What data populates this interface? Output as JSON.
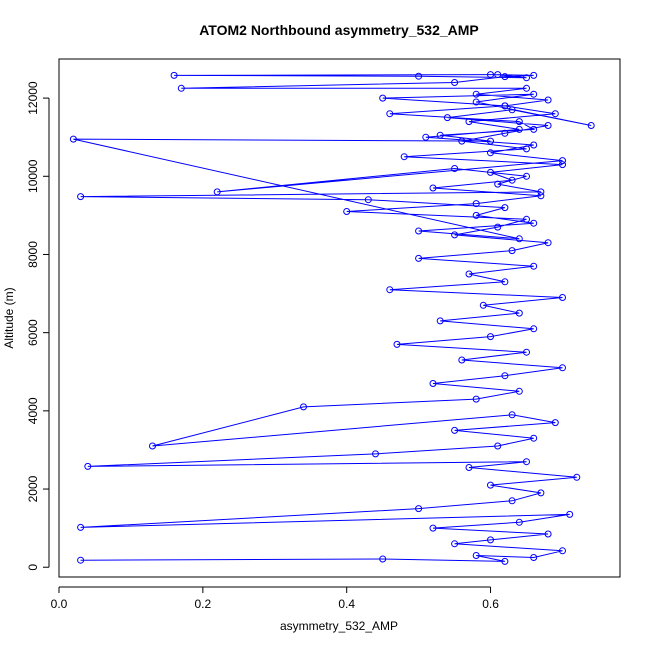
{
  "chart_data": {
    "type": "scatter",
    "title": "ATOM2 Northbound asymmetry_532_AMP",
    "xlabel": "asymmetry_532_AMP",
    "ylabel": "Altitude (m)",
    "xlim": [
      0.0,
      0.78
    ],
    "ylim": [
      -250,
      13000
    ],
    "x_ticks": [
      0.0,
      0.2,
      0.4,
      0.6
    ],
    "x_tick_labels": [
      "0.0",
      "0.2",
      "0.4",
      "0.6"
    ],
    "y_ticks": [
      0,
      2000,
      4000,
      6000,
      8000,
      10000,
      12000
    ],
    "y_tick_labels": [
      "0",
      "2000",
      "4000",
      "6000",
      "8000",
      "10000",
      "12000"
    ],
    "series_color": "#0000ff",
    "marker": "open-circle",
    "line": "connected",
    "grid": false,
    "legend": "none",
    "series": [
      {
        "x": [
          0.03,
          0.45,
          0.62,
          0.58,
          0.66,
          0.7,
          0.55,
          0.6,
          0.68,
          0.52,
          0.64,
          0.71,
          0.03,
          0.5,
          0.63,
          0.67,
          0.6,
          0.72,
          0.57,
          0.65,
          0.04,
          0.44,
          0.61,
          0.66,
          0.55,
          0.69,
          0.63,
          0.13,
          0.34,
          0.58,
          0.64,
          0.52,
          0.62,
          0.7,
          0.56,
          0.65,
          0.47,
          0.6,
          0.66,
          0.53,
          0.64,
          0.59,
          0.7,
          0.46,
          0.62,
          0.57,
          0.66,
          0.5,
          0.63,
          0.68,
          0.55,
          0.61,
          0.65,
          0.4,
          0.58,
          0.67,
          0.52,
          0.63,
          0.6,
          0.7,
          0.48,
          0.65,
          0.56,
          0.62,
          0.68,
          0.54,
          0.63,
          0.74,
          0.58,
          0.66,
          0.45,
          0.62,
          0.69,
          0.57,
          0.64,
          0.51,
          0.66,
          0.6,
          0.7,
          0.22,
          0.55,
          0.65,
          0.61,
          0.67,
          0.03,
          0.43,
          0.62,
          0.58,
          0.66,
          0.5,
          0.64,
          0.02,
          0.6,
          0.53,
          0.66,
          0.64,
          0.46,
          0.62,
          0.68,
          0.58,
          0.65,
          0.17,
          0.55,
          0.62,
          0.66,
          0.6,
          0.16,
          0.5,
          0.65,
          0.61
        ],
        "y": [
          180,
          210,
          150,
          300,
          250,
          420,
          600,
          700,
          850,
          1000,
          1150,
          1350,
          1020,
          1500,
          1700,
          1900,
          2100,
          2300,
          2550,
          2700,
          2580,
          2900,
          3100,
          3300,
          3500,
          3700,
          3900,
          3100,
          4100,
          4300,
          4500,
          4700,
          4900,
          5100,
          5300,
          5500,
          5700,
          5900,
          6100,
          6300,
          6500,
          6700,
          6900,
          7100,
          7300,
          7500,
          7700,
          7900,
          8100,
          8300,
          8500,
          8700,
          8900,
          9100,
          9300,
          9500,
          9700,
          9900,
          10100,
          10300,
          10500,
          10700,
          10900,
          11100,
          11300,
          11500,
          11700,
          11300,
          11900,
          12100,
          12000,
          11800,
          11600,
          11400,
          11200,
          11000,
          10800,
          10600,
          10400,
          9600,
          10200,
          10000,
          9800,
          9600,
          9480,
          9400,
          9200,
          9000,
          8800,
          8600,
          8400,
          10950,
          10900,
          11050,
          11200,
          11400,
          11600,
          11800,
          11950,
          12100,
          12250,
          12250,
          12400,
          12550,
          12580,
          12600,
          12580,
          12560,
          12520,
          12600
        ]
      }
    ]
  }
}
